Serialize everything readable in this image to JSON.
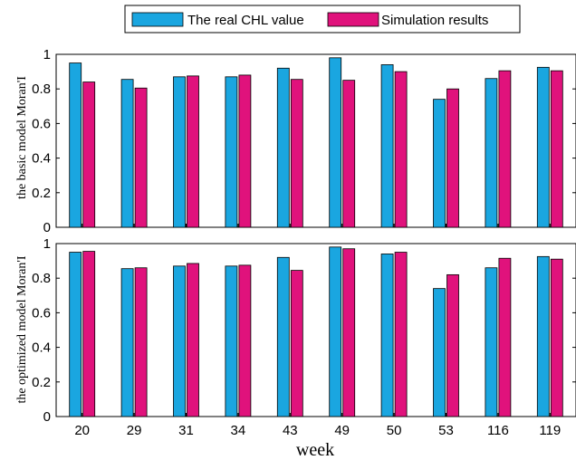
{
  "chart_data": [
    {
      "type": "bar",
      "categories": [
        "20",
        "29",
        "31",
        "34",
        "43",
        "49",
        "50",
        "53",
        "116",
        "119"
      ],
      "series": [
        {
          "name": "The real CHL value",
          "values": [
            0.95,
            0.855,
            0.87,
            0.87,
            0.92,
            0.98,
            0.94,
            0.74,
            0.86,
            0.925
          ],
          "color": "#1aa6e0"
        },
        {
          "name": "Simulation results",
          "values": [
            0.84,
            0.805,
            0.875,
            0.88,
            0.855,
            0.85,
            0.9,
            0.8,
            0.905,
            0.905
          ],
          "color": "#e0127c"
        }
      ],
      "ylabel": "the basic model Moran'I",
      "xlabel": "",
      "ylim": [
        0,
        1
      ],
      "yticks": [
        "0",
        "0.2",
        "0.4",
        "0.6",
        "0.8",
        "1"
      ],
      "show_xticklabels": false,
      "legend": "top-center"
    },
    {
      "type": "bar",
      "categories": [
        "20",
        "29",
        "31",
        "34",
        "43",
        "49",
        "50",
        "53",
        "116",
        "119"
      ],
      "series": [
        {
          "name": "The real CHL value",
          "values": [
            0.95,
            0.855,
            0.87,
            0.87,
            0.92,
            0.98,
            0.94,
            0.74,
            0.86,
            0.925
          ],
          "color": "#1aa6e0"
        },
        {
          "name": "Simulation results",
          "values": [
            0.955,
            0.86,
            0.885,
            0.875,
            0.845,
            0.97,
            0.95,
            0.82,
            0.915,
            0.91
          ],
          "color": "#e0127c"
        }
      ],
      "ylabel": "the optimized model Moran'I",
      "xlabel": "week",
      "ylim": [
        0,
        1
      ],
      "yticks": [
        "0",
        "0.2",
        "0.4",
        "0.6",
        "0.8",
        "1"
      ],
      "show_xticklabels": true
    }
  ]
}
